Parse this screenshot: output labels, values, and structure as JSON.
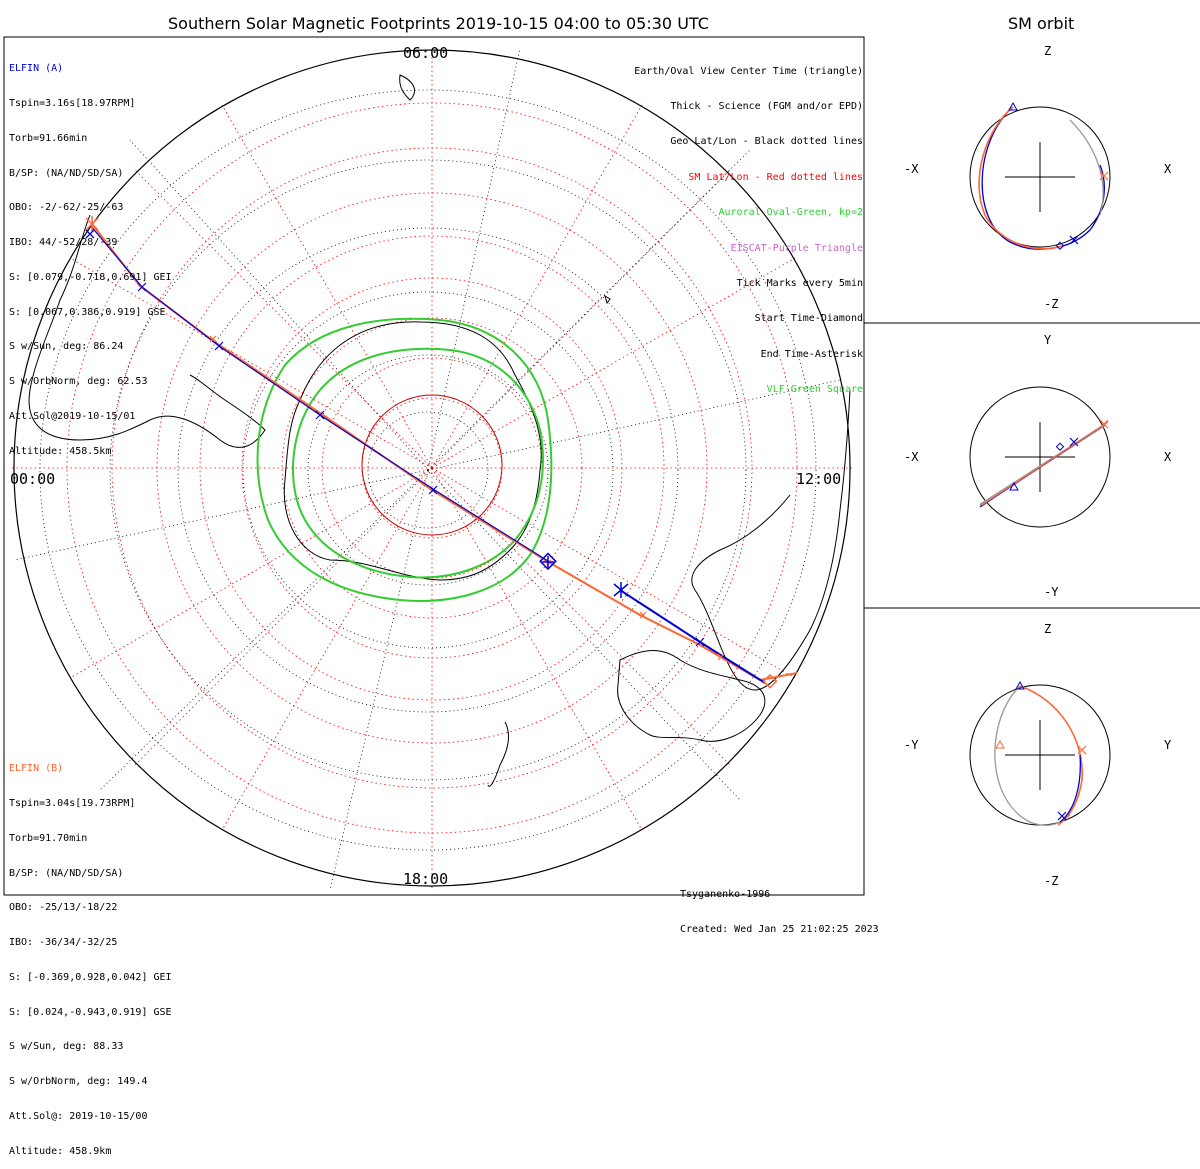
{
  "header": {
    "main_title": "Southern Solar Magnetic Footprints 2019-10-15 04:00 to 05:30 UTC",
    "orbit_title": "SM orbit"
  },
  "elfin_a": {
    "name": "ELFIN (A)",
    "color": "#0000d0",
    "lines": [
      "Tspin=3.16s[18.97RPM]",
      "Torb=91.66min",
      "B/SP: (NA/ND/SD/SA)",
      "OBO: -2/-62/-25/-63",
      "IBO: 44/-52/28/-39",
      "S: [0.079,-0.718,0.691] GEI",
      "S: [0.067,0.386,0.919] GSE",
      "S w/Sun, deg: 86.24",
      "S w/OrbNorm, deg: 62.53",
      "Att.Sol@2019-10-15/01",
      "Altitude: 458.5km"
    ]
  },
  "elfin_b": {
    "name": "ELFIN (B)",
    "color": "#ff6633",
    "lines": [
      "Tspin=3.04s[19.73RPM]",
      "Torb=91.70min",
      "B/SP: (NA/ND/SD/SA)",
      "OBO: -25/13/-18/22",
      "IBO: -36/34/-32/25",
      "S: [-0.369,0.928,0.042] GEI",
      "S: [0.024,-0.943,0.919] GSE",
      "S w/Sun, deg: 88.33",
      "S w/OrbNorm, deg: 149.4",
      "Att.Sol@: 2019-10-15/00",
      "Altitude: 458.9km"
    ]
  },
  "legend": [
    {
      "text": "Earth/Oval View Center Time (triangle)",
      "color": "#000000"
    },
    {
      "text": "Thick - Science (FGM and/or EPD)",
      "color": "#000000"
    },
    {
      "text": "Geo Lat/Lon - Black dotted lines",
      "color": "#000000"
    },
    {
      "text": "SM Lat/Lon - Red dotted lines",
      "color": "#ff0000"
    },
    {
      "text": "Auroral Oval-Green, kp=2",
      "color": "#33cc33"
    },
    {
      "text": "EISCAT-Purple Triangle",
      "color": "#cc66cc"
    },
    {
      "text": "Tick Marks every 5min",
      "color": "#000000"
    },
    {
      "text": "Start Time-Diamond",
      "color": "#000000"
    },
    {
      "text": "End Time-Asterisk",
      "color": "#000000"
    },
    {
      "text": "VLF-Green Square",
      "color": "#33cc33"
    }
  ],
  "clock_labels": {
    "top": "06:00",
    "left": "00:00",
    "right": "12:00",
    "bottom": "18:00"
  },
  "credits": {
    "model": "Tsyganenko-1996",
    "created": "Created: Wed Jan 25 21:02:25 2023"
  },
  "orbit_panels": [
    {
      "top": "Z",
      "bottom": "-Z",
      "left": "-X",
      "right": "X"
    },
    {
      "top": "Y",
      "bottom": "-Y",
      "left": "-X",
      "right": "X"
    },
    {
      "top": "Z",
      "bottom": "-Z",
      "left": "-Y",
      "right": "Y"
    }
  ]
}
